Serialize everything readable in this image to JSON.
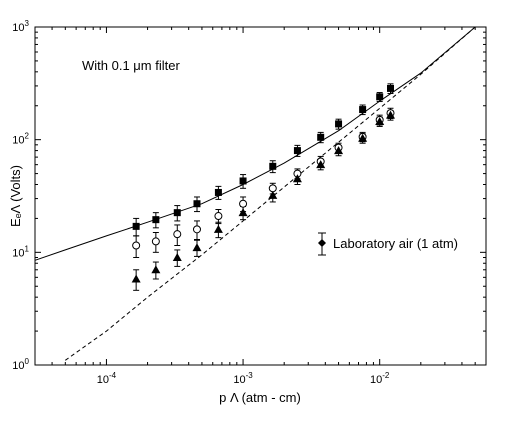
{
  "chart_data": {
    "type": "scatter",
    "title": "",
    "xlabel": "p Λ (atm - cm)",
    "ylabel": "EₑΛ (Volts)",
    "xscale": "log",
    "yscale": "log",
    "xlim": [
      3e-05,
      0.06
    ],
    "ylim": [
      1,
      1000
    ],
    "x_ticks": [
      {
        "value": 0.0001,
        "mantissa": "10",
        "exp": "-4"
      },
      {
        "value": 0.001,
        "mantissa": "10",
        "exp": "-3"
      },
      {
        "value": 0.01,
        "mantissa": "10",
        "exp": "-2"
      }
    ],
    "y_ticks": [
      {
        "value": 1,
        "mantissa": "10",
        "exp": "0"
      },
      {
        "value": 10,
        "mantissa": "10",
        "exp": "1"
      },
      {
        "value": 100,
        "mantissa": "10",
        "exp": "2"
      },
      {
        "value": 1000,
        "mantissa": "10",
        "exp": "3"
      }
    ],
    "grid": false,
    "annotation": "With 0.1 μm filter",
    "legend": {
      "placement": "right",
      "entries": [
        {
          "label": "Laboratory air (1 atm)",
          "marker": "diamond-errorbar"
        }
      ]
    },
    "series": [
      {
        "marker": "square-filled",
        "points": [
          {
            "x": 0.000165,
            "y": 17,
            "err": 3.0
          },
          {
            "x": 0.00023,
            "y": 19.5,
            "err": 3.0
          },
          {
            "x": 0.00033,
            "y": 22.5,
            "err": 3.5
          },
          {
            "x": 0.00046,
            "y": 27,
            "err": 4.0
          },
          {
            "x": 0.00066,
            "y": 34,
            "err": 4.5
          },
          {
            "x": 0.001,
            "y": 43,
            "err": 6.0
          },
          {
            "x": 0.00165,
            "y": 58,
            "err": 7.0
          },
          {
            "x": 0.0025,
            "y": 80,
            "err": 9.0
          },
          {
            "x": 0.0037,
            "y": 105,
            "err": 11.0
          },
          {
            "x": 0.005,
            "y": 138,
            "err": 14.0
          },
          {
            "x": 0.0075,
            "y": 185,
            "err": 18.0
          },
          {
            "x": 0.01,
            "y": 240,
            "err": 22.0
          },
          {
            "x": 0.012,
            "y": 285,
            "err": 28.0
          }
        ]
      },
      {
        "marker": "circle-open",
        "points": [
          {
            "x": 0.000165,
            "y": 11.5,
            "err": 2.5
          },
          {
            "x": 0.00023,
            "y": 12.5,
            "err": 2.5
          },
          {
            "x": 0.00033,
            "y": 14.5,
            "err": 3.0
          },
          {
            "x": 0.00046,
            "y": 16,
            "err": 3.0
          },
          {
            "x": 0.00066,
            "y": 21,
            "err": 3.0
          },
          {
            "x": 0.001,
            "y": 27,
            "err": 4.0
          },
          {
            "x": 0.00165,
            "y": 37,
            "err": 4.0
          },
          {
            "x": 0.0025,
            "y": 50,
            "err": 5.0
          },
          {
            "x": 0.0037,
            "y": 64,
            "err": 7.0
          },
          {
            "x": 0.005,
            "y": 85,
            "err": 8.0
          },
          {
            "x": 0.0075,
            "y": 106,
            "err": 10.0
          },
          {
            "x": 0.01,
            "y": 150,
            "err": 15.0
          },
          {
            "x": 0.012,
            "y": 172,
            "err": 18.0
          }
        ]
      },
      {
        "marker": "triangle-filled",
        "points": [
          {
            "x": 0.000165,
            "y": 5.8,
            "err": 1.2
          },
          {
            "x": 0.00023,
            "y": 7.0,
            "err": 1.2
          },
          {
            "x": 0.00033,
            "y": 9.0,
            "err": 1.5
          },
          {
            "x": 0.00046,
            "y": 11.0,
            "err": 1.8
          },
          {
            "x": 0.00066,
            "y": 16,
            "err": 2.5
          },
          {
            "x": 0.001,
            "y": 22.5,
            "err": 3.0
          },
          {
            "x": 0.00165,
            "y": 32,
            "err": 4.0
          },
          {
            "x": 0.0025,
            "y": 45,
            "err": 5.0
          },
          {
            "x": 0.0037,
            "y": 60,
            "err": 6.0
          },
          {
            "x": 0.005,
            "y": 80,
            "err": 8.0
          },
          {
            "x": 0.0075,
            "y": 103,
            "err": 10.0
          },
          {
            "x": 0.01,
            "y": 145,
            "err": 14.0
          },
          {
            "x": 0.012,
            "y": 165,
            "err": 16.0
          }
        ]
      }
    ],
    "curves": [
      {
        "style": "solid",
        "points": [
          [
            3e-05,
            8.5
          ],
          [
            5e-05,
            10.5
          ],
          [
            0.0001,
            14
          ],
          [
            0.0002,
            18.5
          ],
          [
            0.0005,
            27
          ],
          [
            0.001,
            40
          ],
          [
            0.002,
            62
          ],
          [
            0.005,
            120
          ],
          [
            0.01,
            220
          ],
          [
            0.02,
            390
          ],
          [
            0.05,
            1000
          ]
        ]
      },
      {
        "style": "dashed",
        "points": [
          [
            5e-05,
            1.1
          ],
          [
            0.0001,
            2.0
          ],
          [
            0.0002,
            4.0
          ],
          [
            0.0005,
            9.5
          ],
          [
            0.001,
            19
          ],
          [
            0.002,
            38
          ],
          [
            0.005,
            95
          ],
          [
            0.01,
            190
          ],
          [
            0.02,
            380
          ],
          [
            0.05,
            1000
          ]
        ]
      }
    ]
  }
}
